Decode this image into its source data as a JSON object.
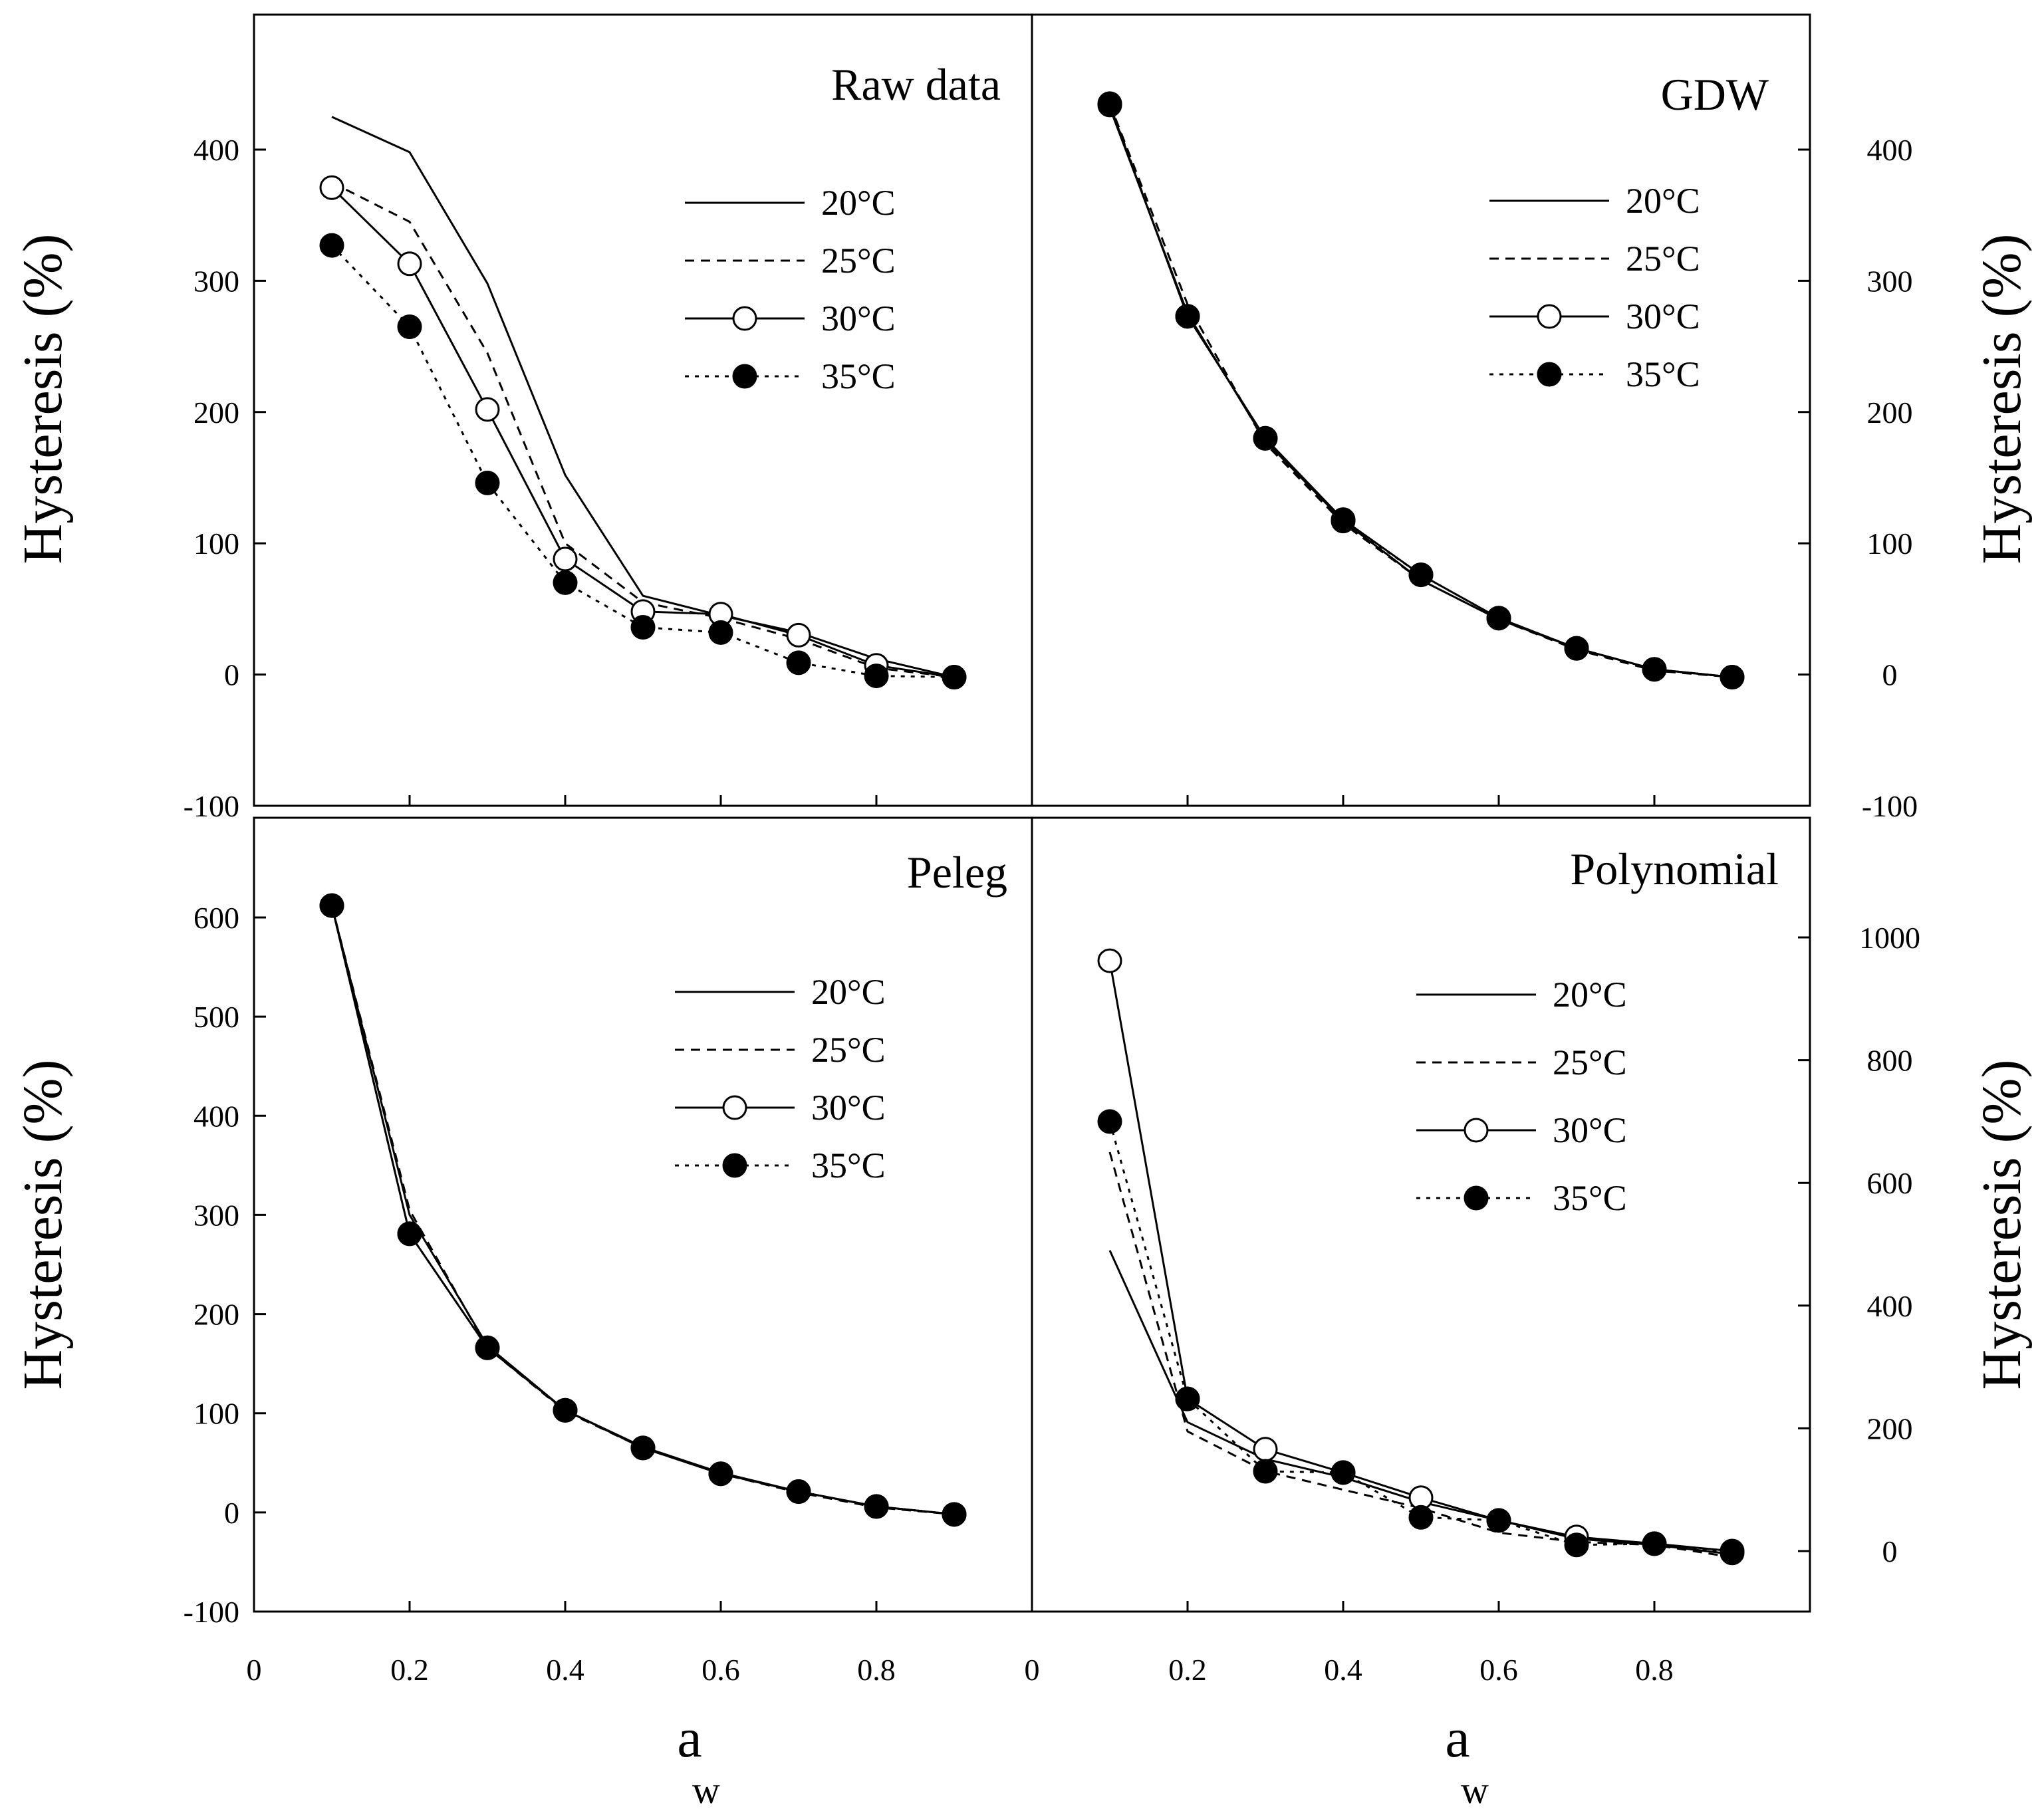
{
  "figure": {
    "x_axis_label_main": "a",
    "x_axis_label_sub": "w",
    "y_axis_label": "Hysteresis (%)"
  },
  "legend": {
    "entries": [
      {
        "label": "20°C",
        "line": "solid",
        "marker": "none"
      },
      {
        "label": "25°C",
        "line": "dashed",
        "marker": "none"
      },
      {
        "label": "30°C",
        "line": "solid",
        "marker": "open-circle"
      },
      {
        "label": "35°C",
        "line": "dotted",
        "marker": "filled-circle"
      }
    ]
  },
  "chart_data": [
    {
      "type": "line",
      "title": "Raw data",
      "xlabel": "a_w",
      "ylabel": "Hysteresis (%)",
      "xlim": [
        0,
        1.0
      ],
      "ylim": [
        -100,
        500
      ],
      "x_ticks": [
        0,
        0.2,
        0.4,
        0.6,
        0.8
      ],
      "y_ticks": [
        -100,
        0,
        100,
        200,
        300,
        400
      ],
      "x_tick_labels": [
        "0",
        "0.2",
        "0.4",
        "0.6",
        "0.8"
      ],
      "y_tick_labels": [
        "-100",
        "0",
        "100",
        "200",
        "300",
        "400"
      ],
      "y_axis_side": "left",
      "series": [
        {
          "name": "20°C",
          "x": [
            0.1,
            0.2,
            0.3,
            0.4,
            0.5,
            0.6,
            0.7,
            0.8,
            0.9
          ],
          "values": [
            425,
            398,
            298,
            152,
            60,
            45,
            32,
            12,
            -2
          ]
        },
        {
          "name": "25°C",
          "x": [
            0.1,
            0.2,
            0.3,
            0.4,
            0.5,
            0.6,
            0.7,
            0.8,
            0.9
          ],
          "values": [
            375,
            345,
            245,
            100,
            55,
            43,
            27,
            5,
            -2
          ]
        },
        {
          "name": "30°C",
          "x": [
            0.1,
            0.2,
            0.3,
            0.4,
            0.5,
            0.6,
            0.7,
            0.8,
            0.9
          ],
          "values": [
            371,
            313,
            202,
            88,
            48,
            46,
            30,
            7,
            -2
          ]
        },
        {
          "name": "35°C",
          "x": [
            0.1,
            0.2,
            0.3,
            0.4,
            0.5,
            0.6,
            0.7,
            0.8,
            0.9
          ],
          "values": [
            327,
            265,
            146,
            70,
            36,
            32,
            9,
            -1,
            -2
          ]
        }
      ]
    },
    {
      "type": "line",
      "title": "GDW",
      "xlabel": "a_w",
      "ylabel": "Hysteresis (%)",
      "xlim": [
        0,
        1.0
      ],
      "ylim": [
        -100,
        500
      ],
      "x_ticks": [
        0,
        0.2,
        0.4,
        0.6,
        0.8
      ],
      "y_ticks": [
        -100,
        0,
        100,
        200,
        300,
        400
      ],
      "x_tick_labels": [
        "0",
        "0.2",
        "0.4",
        "0.6",
        "0.8"
      ],
      "y_tick_labels": [
        "-100",
        "0",
        "100",
        "200",
        "300",
        "400"
      ],
      "y_axis_side": "right",
      "series": [
        {
          "name": "20°C",
          "x": [
            0.1,
            0.2,
            0.3,
            0.4,
            0.5,
            0.6,
            0.7,
            0.8,
            0.9
          ],
          "values": [
            432,
            275,
            178,
            117,
            72,
            42,
            20,
            4,
            -2
          ]
        },
        {
          "name": "25°C",
          "x": [
            0.1,
            0.2,
            0.3,
            0.4,
            0.5,
            0.6,
            0.7,
            0.8,
            0.9
          ],
          "values": [
            435,
            282,
            176,
            115,
            72,
            42,
            19,
            3,
            -2
          ]
        },
        {
          "name": "30°C",
          "x": [
            0.1,
            0.2,
            0.3,
            0.4,
            0.5,
            0.6,
            0.7,
            0.8,
            0.9
          ],
          "values": [
            434,
            273,
            180,
            118,
            76,
            43,
            20,
            4,
            -2
          ]
        },
        {
          "name": "35°C",
          "x": [
            0.1,
            0.2,
            0.3,
            0.4,
            0.5,
            0.6,
            0.7,
            0.8,
            0.9
          ],
          "values": [
            435,
            273,
            180,
            117,
            76,
            43,
            20,
            4,
            -2
          ]
        }
      ]
    },
    {
      "type": "line",
      "title": "Peleg",
      "xlabel": "a_w",
      "ylabel": "Hysteresis (%)",
      "xlim": [
        0,
        1.0
      ],
      "ylim": [
        -100,
        700
      ],
      "x_ticks": [
        0,
        0.2,
        0.4,
        0.6,
        0.8
      ],
      "y_ticks": [
        -100,
        0,
        100,
        200,
        300,
        400,
        500,
        600
      ],
      "x_tick_labels": [
        "0",
        "0.2",
        "0.4",
        "0.6",
        "0.8"
      ],
      "y_tick_labels": [
        "-100",
        "0",
        "100",
        "200",
        "300",
        "400",
        "500",
        "600"
      ],
      "y_axis_side": "left",
      "series": [
        {
          "name": "20°C",
          "x": [
            0.1,
            0.2,
            0.3,
            0.4,
            0.5,
            0.6,
            0.7,
            0.8,
            0.9
          ],
          "values": [
            612,
            300,
            168,
            103,
            66,
            40,
            21,
            6,
            -2
          ]
        },
        {
          "name": "25°C",
          "x": [
            0.1,
            0.2,
            0.3,
            0.4,
            0.5,
            0.6,
            0.7,
            0.8,
            0.9
          ],
          "values": [
            612,
            305,
            166,
            102,
            65,
            39,
            20,
            5,
            -2
          ]
        },
        {
          "name": "30°C",
          "x": [
            0.1,
            0.2,
            0.3,
            0.4,
            0.5,
            0.6,
            0.7,
            0.8,
            0.9
          ],
          "values": [
            612,
            281,
            166,
            103,
            65,
            39,
            21,
            6,
            -2
          ]
        },
        {
          "name": "35°C",
          "x": [
            0.1,
            0.2,
            0.3,
            0.4,
            0.5,
            0.6,
            0.7,
            0.8,
            0.9
          ],
          "values": [
            612,
            281,
            166,
            103,
            65,
            39,
            21,
            6,
            -2
          ]
        }
      ]
    },
    {
      "type": "line",
      "title": "Polynomial",
      "xlabel": "a_w",
      "ylabel": "Hysteresis (%)",
      "xlim": [
        0,
        1.0
      ],
      "ylim": [
        -100,
        1200
      ],
      "x_ticks": [
        0,
        0.2,
        0.4,
        0.6,
        0.8
      ],
      "y_ticks": [
        0,
        200,
        400,
        600,
        800,
        1000
      ],
      "x_tick_labels": [
        "0",
        "0.2",
        "0.4",
        "0.6",
        "0.8"
      ],
      "y_tick_labels": [
        "0",
        "200",
        "400",
        "600",
        "800",
        "1000"
      ],
      "y_axis_side": "right",
      "series": [
        {
          "name": "20°C",
          "x": [
            0.1,
            0.2,
            0.3,
            0.4,
            0.5,
            0.6,
            0.7,
            0.8,
            0.9
          ],
          "values": [
            490,
            210,
            150,
            120,
            80,
            50,
            20,
            10,
            -5
          ]
        },
        {
          "name": "25°C",
          "x": [
            0.1,
            0.2,
            0.3,
            0.4,
            0.5,
            0.6,
            0.7,
            0.8,
            0.9
          ],
          "values": [
            650,
            195,
            130,
            100,
            70,
            30,
            15,
            10,
            -10
          ]
        },
        {
          "name": "30°C",
          "x": [
            0.1,
            0.2,
            0.3,
            0.4,
            0.5,
            0.6,
            0.7,
            0.8,
            0.9
          ],
          "values": [
            962,
            248,
            166,
            128,
            87,
            50,
            23,
            12,
            0
          ]
        },
        {
          "name": "35°C",
          "x": [
            0.1,
            0.2,
            0.3,
            0.4,
            0.5,
            0.6,
            0.7,
            0.8,
            0.9
          ],
          "values": [
            700,
            248,
            130,
            128,
            55,
            50,
            10,
            12,
            -3
          ]
        }
      ]
    }
  ]
}
